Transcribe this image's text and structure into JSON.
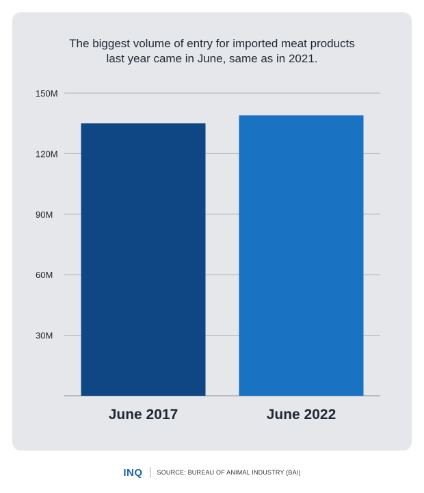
{
  "chart_data": {
    "type": "bar",
    "title_lines": [
      "The biggest volume of entry for imported meat products",
      "last year came in June, same as in 2021."
    ],
    "categories": [
      "June 2017",
      "June 2022"
    ],
    "values": [
      135000000,
      139000000
    ],
    "y_ticks": [
      30000000,
      60000000,
      90000000,
      120000000,
      150000000
    ],
    "y_tick_labels": [
      "30M",
      "60M",
      "90M",
      "120M",
      "150M"
    ],
    "ylim": [
      0,
      150000000
    ],
    "grid": true,
    "bar_colors": [
      "#0f4784",
      "#1a72c2"
    ]
  },
  "footer": {
    "logo": "INQ",
    "source": "SOURCE: BUREAU OF ANIMAL INDUSTRY (BAI)"
  }
}
